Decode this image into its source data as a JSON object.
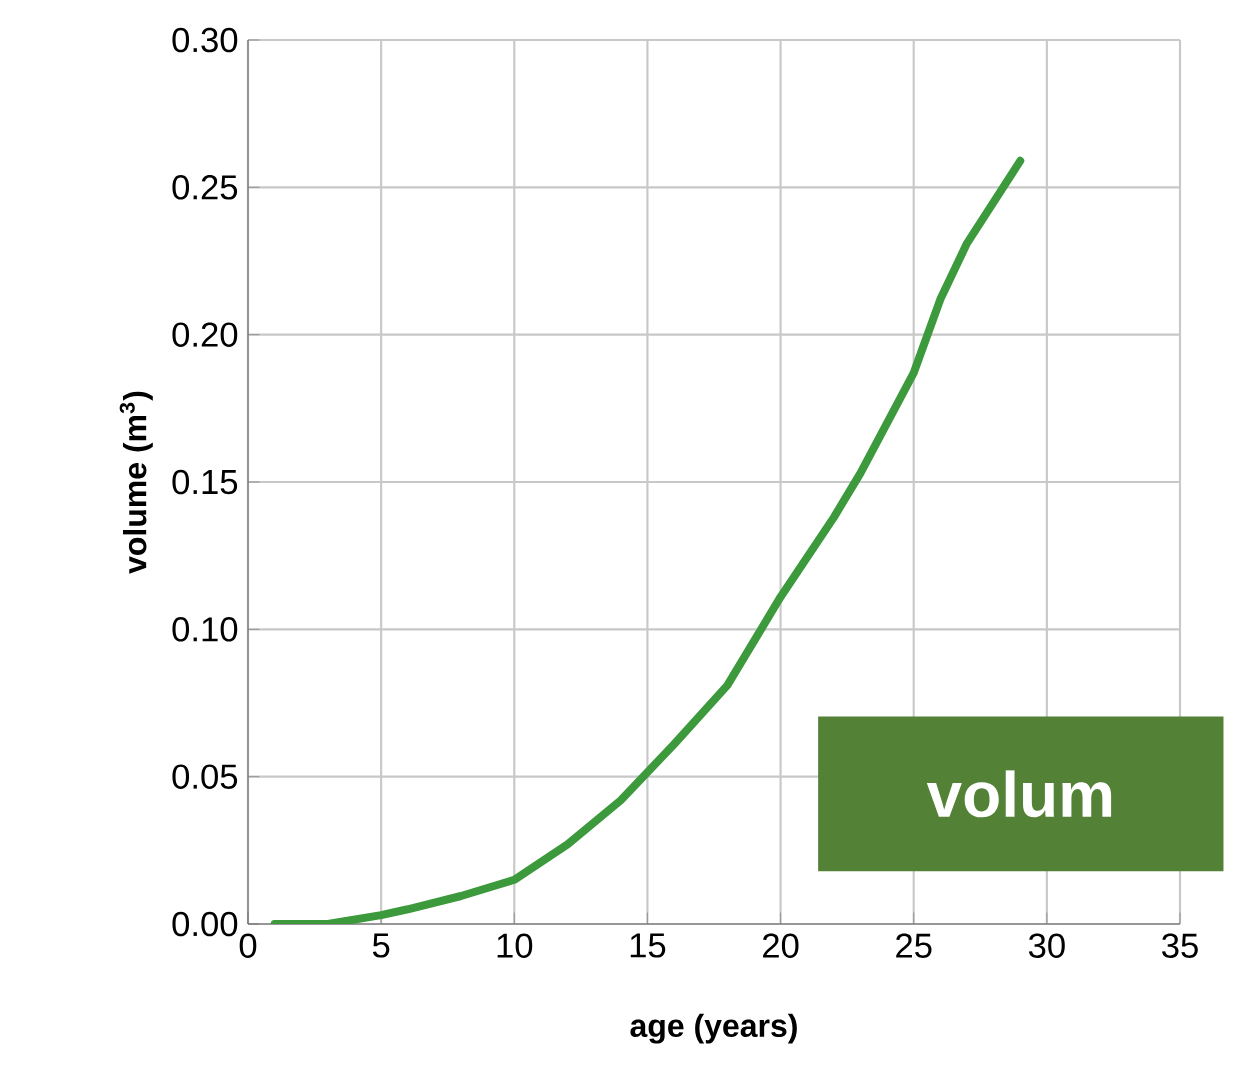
{
  "chart_data": {
    "type": "line",
    "xlabel": "age (years)",
    "ylabel": "volume (m$^{3}$)",
    "xlim": [
      0,
      35
    ],
    "ylim": [
      0,
      0.3
    ],
    "xticks": [
      0,
      5,
      10,
      15,
      20,
      25,
      30,
      35
    ],
    "yticks": [
      {
        "value": 0,
        "label": "0.00"
      },
      {
        "value": 0.05,
        "label": "0.05"
      },
      {
        "value": 0.1,
        "label": "0.10"
      },
      {
        "value": 0.15,
        "label": "0.15"
      },
      {
        "value": 0.2,
        "label": "0.20"
      },
      {
        "value": 0.25,
        "label": "0.25"
      },
      {
        "value": 0.3,
        "label": "0.30"
      }
    ],
    "grid": true,
    "marker": "none",
    "line_style": "solid",
    "annotations": [
      "volum"
    ],
    "series": [
      {
        "color": "#3c9a3c",
        "x": [
          1,
          3,
          5,
          6,
          8,
          10,
          12,
          14,
          16,
          18,
          20,
          22,
          23,
          25,
          26,
          27,
          29
        ],
        "values": [
          0,
          0,
          0.003,
          0.005,
          0.0095,
          0.015,
          0.027,
          0.042,
          0.061,
          0.081,
          0.111,
          0.138,
          0.153,
          0.187,
          0.212,
          0.231,
          0.259
        ]
      }
    ]
  }
}
